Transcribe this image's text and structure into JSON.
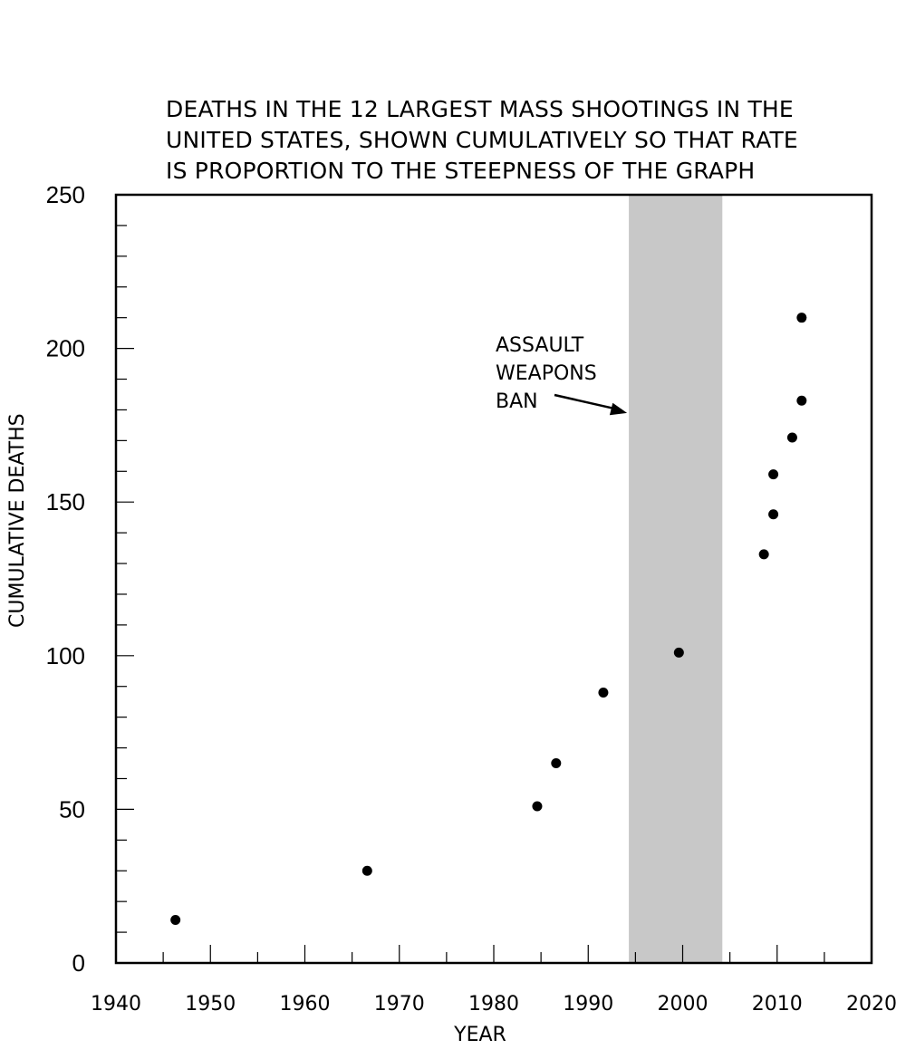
{
  "chart_data": {
    "type": "scatter",
    "title_lines": [
      "DEATHS IN THE 12 LARGEST MASS SHOOTINGS IN THE",
      "UNITED STATES, SHOWN CUMULATIVELY SO THAT RATE",
      "IS PROPORTION TO THE STEEPNESS OF THE GRAPH"
    ],
    "xlabel": "YEAR",
    "ylabel": "CUMULATIVE DEATHS",
    "xlim": [
      1940,
      2020
    ],
    "ylim": [
      0,
      250
    ],
    "x_ticks": [
      "1940",
      "1950",
      "1960",
      "1970",
      "1980",
      "1990",
      "2000",
      "2010",
      "2020"
    ],
    "y_ticks": [
      "0",
      "50",
      "100",
      "150",
      "200",
      "250"
    ],
    "grid": false,
    "points": [
      {
        "x": 1946.3,
        "y": 14
      },
      {
        "x": 1966.6,
        "y": 30
      },
      {
        "x": 1984.6,
        "y": 51
      },
      {
        "x": 1986.6,
        "y": 65
      },
      {
        "x": 1991.6,
        "y": 88
      },
      {
        "x": 1999.6,
        "y": 101
      },
      {
        "x": 2008.6,
        "y": 133
      },
      {
        "x": 2009.6,
        "y": 146
      },
      {
        "x": 2009.6,
        "y": 159
      },
      {
        "x": 2011.6,
        "y": 171
      },
      {
        "x": 2012.6,
        "y": 183
      },
      {
        "x": 2012.6,
        "y": 210
      }
    ],
    "shaded_region": {
      "x_start": 1994.3,
      "x_end": 2004.2,
      "color": "#c8c8c8"
    },
    "annotation": {
      "lines": [
        "ASSAULT",
        "WEAPONS",
        "BAN"
      ],
      "arrow_to": {
        "x": 1994.3,
        "y": 179
      }
    },
    "colors": {
      "marker": "#000000",
      "band": "#c8c8c8",
      "axis": "#000000"
    }
  }
}
